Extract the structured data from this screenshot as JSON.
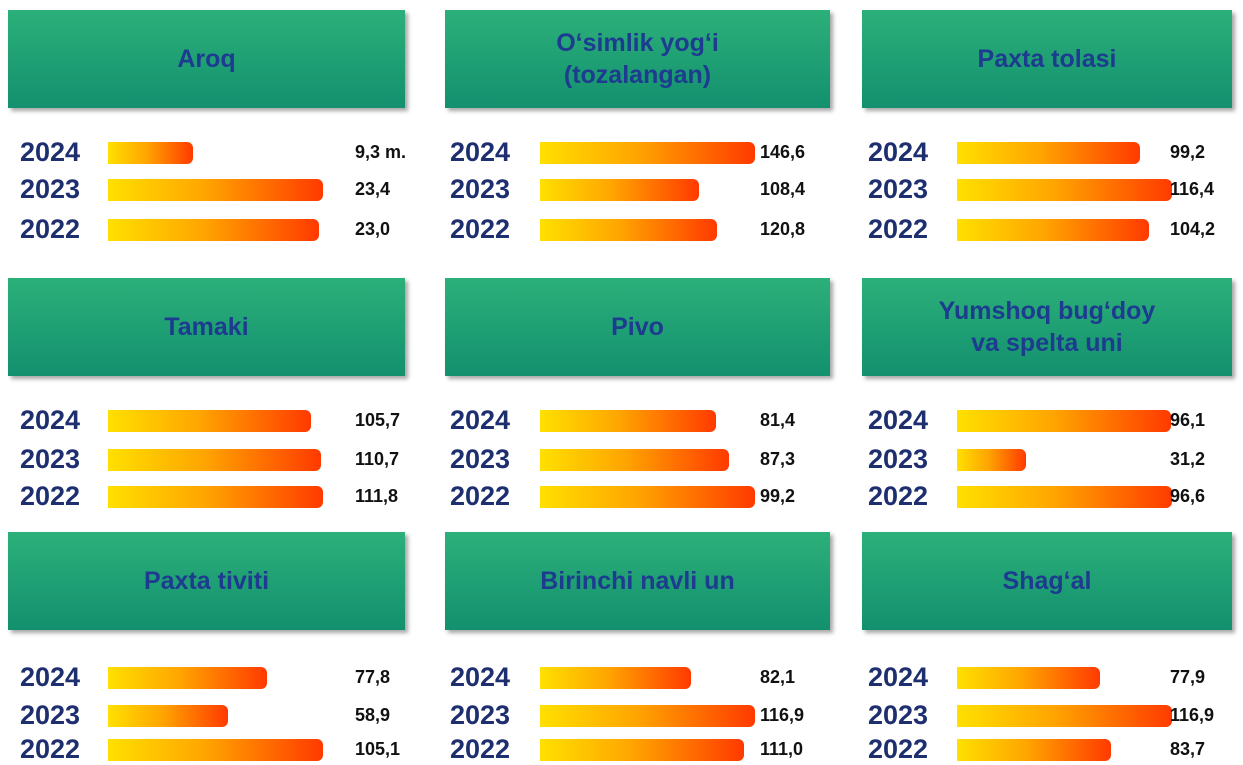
{
  "chart_data": [
    {
      "type": "bar",
      "title": "Aroq",
      "categories": [
        "2024",
        "2023",
        "2022"
      ],
      "values": [
        9.3,
        23.4,
        23.0
      ],
      "value_labels": [
        "9,3 m.",
        "23,4",
        "23,0"
      ]
    },
    {
      "type": "bar",
      "title": "O‘simlik yog‘i\n(tozalangan)",
      "categories": [
        "2024",
        "2023",
        "2022"
      ],
      "values": [
        146.6,
        108.4,
        120.8
      ],
      "value_labels": [
        "146,6",
        "108,4",
        "120,8"
      ]
    },
    {
      "type": "bar",
      "title": "Paxta tolasi",
      "categories": [
        "2024",
        "2023",
        "2022"
      ],
      "values": [
        99.2,
        116.4,
        104.2
      ],
      "value_labels": [
        "99,2",
        "116,4",
        "104,2"
      ]
    },
    {
      "type": "bar",
      "title": "Tamaki",
      "categories": [
        "2024",
        "2023",
        "2022"
      ],
      "values": [
        105.7,
        110.7,
        111.8
      ],
      "value_labels": [
        "105,7",
        "110,7",
        "111,8"
      ]
    },
    {
      "type": "bar",
      "title": "Pivo",
      "categories": [
        "2024",
        "2023",
        "2022"
      ],
      "values": [
        81.4,
        87.3,
        99.2
      ],
      "value_labels": [
        "81,4",
        "87,3",
        "99,2"
      ]
    },
    {
      "type": "bar",
      "title": "Yumshoq bug‘doy\nva spelta uni",
      "categories": [
        "2024",
        "2023",
        "2022"
      ],
      "values": [
        96.1,
        31.2,
        96.6
      ],
      "value_labels": [
        "96,1",
        "31,2",
        "96,6"
      ]
    },
    {
      "type": "bar",
      "title": "Paxta tiviti",
      "categories": [
        "2024",
        "2023",
        "2022"
      ],
      "values": [
        77.8,
        58.9,
        105.1
      ],
      "value_labels": [
        "77,8",
        "58,9",
        "105,1"
      ]
    },
    {
      "type": "bar",
      "title": "Birinchi navli un",
      "categories": [
        "2024",
        "2023",
        "2022"
      ],
      "values": [
        82.1,
        116.9,
        111.0
      ],
      "value_labels": [
        "82,1",
        "116,9",
        "111,0"
      ]
    },
    {
      "type": "bar",
      "title": "Shag‘al",
      "categories": [
        "2024",
        "2023",
        "2022"
      ],
      "values": [
        77.9,
        116.9,
        83.7
      ],
      "value_labels": [
        "77,9",
        "116,9",
        "83,7"
      ]
    }
  ]
}
